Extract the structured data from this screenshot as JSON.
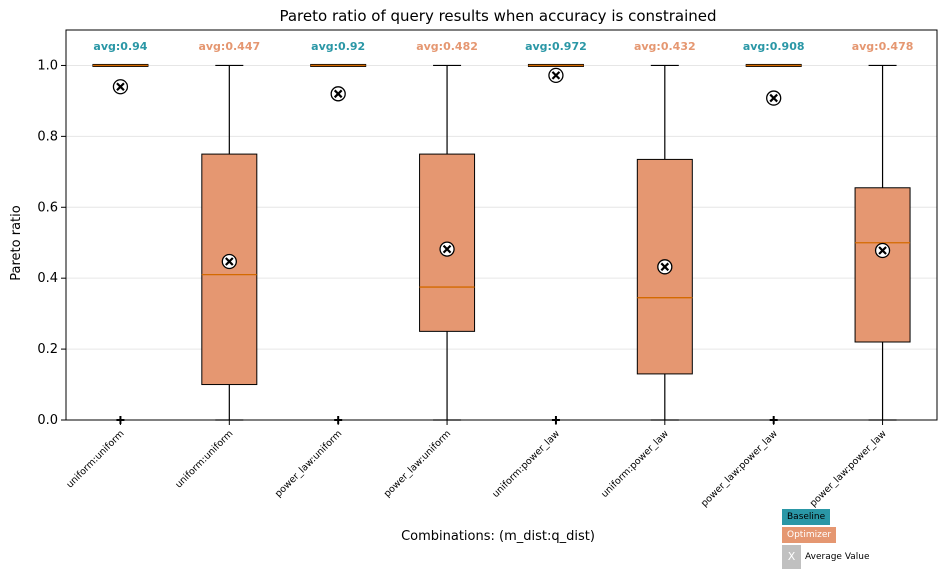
{
  "chart_data": {
    "type": "box",
    "title": "Pareto ratio of query results when accuracy is constrained",
    "xlabel": "Combinations: (m_dist:q_dist)",
    "ylabel": "Pareto ratio",
    "ylim": [
      0,
      1.1
    ],
    "yticks": [
      "0.0",
      "0.2",
      "0.4",
      "0.6",
      "0.8",
      "1.0"
    ],
    "grid": "horizontal",
    "colors": {
      "baseline": "#2a97a6",
      "optimizer": "#e59771"
    },
    "categories": [
      "uniform:uniform",
      "uniform:uniform",
      "power_law:uniform",
      "power_law:uniform",
      "uniform:power_law",
      "uniform:power_law",
      "power_law:power_law",
      "power_law:power_law"
    ],
    "boxes": [
      {
        "group": "Baseline",
        "min": 1.0,
        "q1": 1.0,
        "median": 1.0,
        "q3": 1.0,
        "max": 1.0,
        "mean": 0.94,
        "outliers": [
          0.0
        ],
        "avg_label": "avg:0.94"
      },
      {
        "group": "Optimizer",
        "min": 0.0,
        "q1": 0.1,
        "median": 0.41,
        "q3": 0.75,
        "max": 1.0,
        "mean": 0.447,
        "outliers": [],
        "avg_label": "avg:0.447"
      },
      {
        "group": "Baseline",
        "min": 1.0,
        "q1": 1.0,
        "median": 1.0,
        "q3": 1.0,
        "max": 1.0,
        "mean": 0.92,
        "outliers": [
          0.0
        ],
        "avg_label": "avg:0.92"
      },
      {
        "group": "Optimizer",
        "min": 0.0,
        "q1": 0.25,
        "median": 0.375,
        "q3": 0.75,
        "max": 1.0,
        "mean": 0.482,
        "outliers": [],
        "avg_label": "avg:0.482"
      },
      {
        "group": "Baseline",
        "min": 1.0,
        "q1": 1.0,
        "median": 1.0,
        "q3": 1.0,
        "max": 1.0,
        "mean": 0.972,
        "outliers": [
          0.0
        ],
        "avg_label": "avg:0.972"
      },
      {
        "group": "Optimizer",
        "min": 0.0,
        "q1": 0.13,
        "median": 0.345,
        "q3": 0.735,
        "max": 1.0,
        "mean": 0.432,
        "outliers": [],
        "avg_label": "avg:0.432"
      },
      {
        "group": "Baseline",
        "min": 1.0,
        "q1": 1.0,
        "median": 1.0,
        "q3": 1.0,
        "max": 1.0,
        "mean": 0.908,
        "outliers": [
          0.0
        ],
        "avg_label": "avg:0.908"
      },
      {
        "group": "Optimizer",
        "min": 0.0,
        "q1": 0.22,
        "median": 0.5,
        "q3": 0.655,
        "max": 1.0,
        "mean": 0.478,
        "outliers": [],
        "avg_label": "avg:0.478"
      }
    ],
    "legend": {
      "baseline": "Baseline",
      "optimizer": "Optimizer",
      "avg_marker": "X",
      "avg_label": "Average Value",
      "placement": "bottom-right"
    }
  }
}
